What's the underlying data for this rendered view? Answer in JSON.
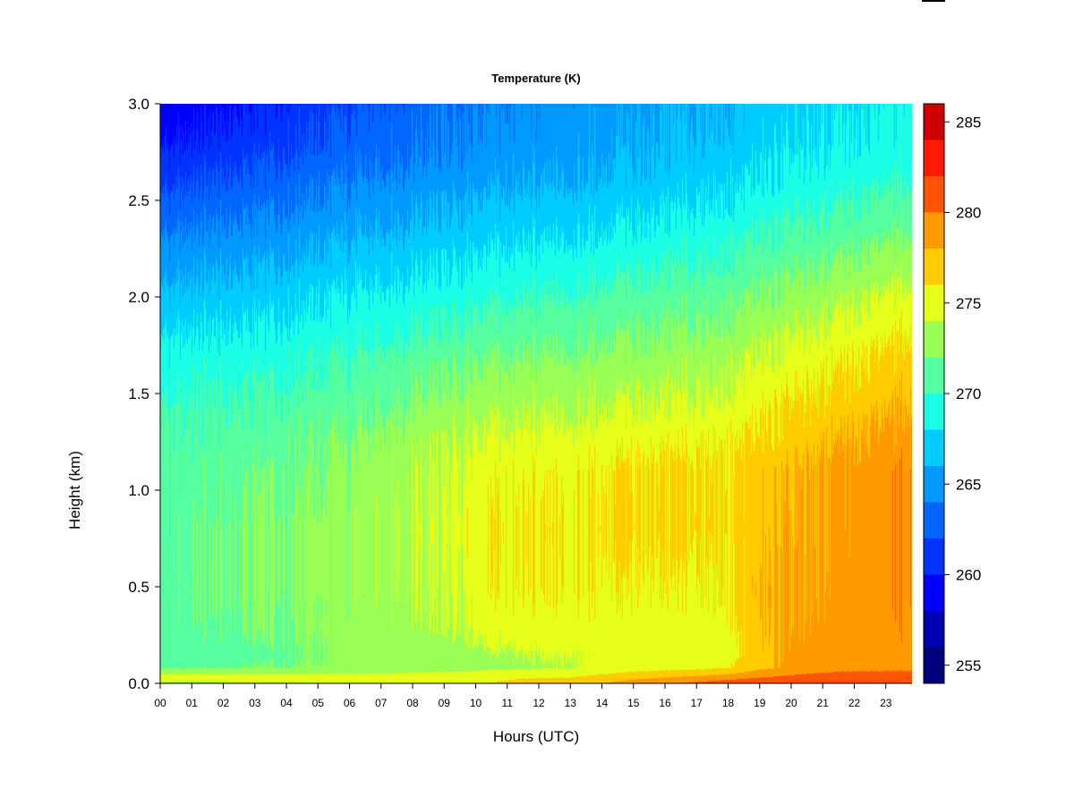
{
  "chart_data": {
    "type": "heatmap",
    "title": "Temperature (K)",
    "xlabel": "Hours (UTC)",
    "ylabel": "Height (km)",
    "x_ticks": [
      "00",
      "01",
      "02",
      "03",
      "04",
      "05",
      "06",
      "07",
      "08",
      "09",
      "10",
      "11",
      "12",
      "13",
      "14",
      "15",
      "16",
      "17",
      "18",
      "19",
      "20",
      "21",
      "22",
      "23"
    ],
    "xlim": [
      0,
      23.83
    ],
    "y_ticks": [
      "0.0",
      "0.5",
      "1.0",
      "1.5",
      "2.0",
      "2.5",
      "3.0"
    ],
    "ylim": [
      0,
      3.0
    ],
    "colorbar": {
      "ticks": [
        "255",
        "260",
        "265",
        "270",
        "275",
        "280",
        "285"
      ],
      "range": [
        254,
        286
      ],
      "levels": [
        254,
        256,
        258,
        260,
        262,
        264,
        266,
        268,
        270,
        272,
        274,
        276,
        278,
        280,
        282,
        284,
        286
      ],
      "colors": [
        "#00007f",
        "#0000b3",
        "#0000ff",
        "#0033ff",
        "#0066ff",
        "#0099ff",
        "#00ccff",
        "#1affe6",
        "#55ff9f",
        "#99ff55",
        "#e6ff1a",
        "#ffcc00",
        "#ff9900",
        "#ff5500",
        "#ff1a00",
        "#cc0000",
        "#7f0000"
      ]
    },
    "profile_heights_km": [
      0.0,
      0.03,
      0.08,
      0.15,
      0.3,
      0.5,
      0.8,
      1.1,
      1.4,
      1.7,
      2.0,
      2.3,
      2.6,
      2.8,
      3.0
    ],
    "profile_hours": [
      0,
      3,
      6,
      9,
      10.5,
      13,
      15,
      17,
      18,
      19,
      20,
      21,
      22,
      23,
      23.83
    ],
    "temperature_K": [
      [
        273.5,
        275.0,
        271.8,
        271.0,
        271.2,
        271.2,
        271.0,
        270.6,
        270.2,
        268.8,
        266.5,
        264.2,
        261.5,
        259.8,
        258.5
      ],
      [
        273.8,
        275.0,
        272.0,
        271.6,
        271.8,
        272.0,
        272.0,
        271.5,
        270.5,
        269.0,
        267.0,
        264.8,
        262.5,
        261.0,
        260.0
      ],
      [
        274.0,
        275.2,
        272.2,
        272.4,
        272.8,
        273.0,
        273.0,
        272.6,
        271.5,
        270.0,
        268.2,
        266.0,
        264.0,
        262.8,
        261.8
      ],
      [
        275.0,
        275.5,
        272.8,
        273.2,
        273.8,
        274.2,
        274.5,
        274.2,
        273.0,
        271.2,
        269.0,
        267.0,
        265.0,
        264.0,
        263.5
      ],
      [
        276.0,
        275.8,
        273.5,
        273.8,
        274.8,
        275.5,
        275.8,
        275.2,
        273.6,
        271.8,
        269.6,
        267.5,
        265.5,
        264.6,
        264.0
      ],
      [
        277.0,
        276.0,
        274.0,
        274.2,
        275.2,
        275.8,
        276.0,
        275.5,
        274.0,
        272.2,
        270.2,
        268.0,
        266.0,
        265.2,
        264.8
      ],
      [
        279.0,
        277.5,
        275.0,
        274.5,
        275.0,
        275.6,
        276.5,
        276.2,
        274.4,
        272.6,
        270.8,
        268.6,
        266.6,
        265.8,
        265.4
      ],
      [
        280.5,
        278.5,
        275.5,
        274.5,
        274.8,
        275.5,
        276.5,
        276.4,
        274.6,
        273.0,
        271.2,
        269.2,
        267.2,
        266.4,
        266.0
      ],
      [
        281.5,
        279.0,
        276.0,
        275.0,
        275.5,
        276.0,
        276.6,
        276.5,
        275.0,
        273.4,
        271.6,
        269.6,
        267.6,
        266.8,
        266.4
      ],
      [
        282.0,
        280.0,
        277.5,
        277.5,
        277.5,
        277.5,
        277.2,
        277.0,
        275.5,
        274.0,
        272.0,
        270.0,
        268.0,
        267.2,
        266.8
      ],
      [
        282.0,
        280.5,
        278.5,
        278.2,
        278.0,
        278.0,
        277.8,
        277.6,
        276.2,
        274.6,
        272.6,
        270.5,
        268.5,
        267.6,
        267.2
      ],
      [
        282.0,
        281.0,
        279.0,
        279.0,
        278.8,
        278.6,
        278.5,
        278.4,
        276.8,
        275.2,
        273.2,
        271.0,
        269.0,
        268.0,
        267.6
      ],
      [
        282.0,
        281.0,
        279.5,
        279.2,
        279.2,
        279.2,
        279.0,
        279.0,
        277.4,
        275.8,
        273.8,
        271.5,
        269.4,
        268.4,
        268.0
      ],
      [
        282.0,
        281.0,
        279.5,
        279.4,
        279.4,
        279.5,
        279.4,
        279.4,
        278.0,
        276.4,
        274.4,
        272.0,
        269.8,
        268.8,
        268.4
      ],
      [
        282.0,
        281.0,
        279.6,
        279.5,
        279.5,
        279.6,
        279.6,
        279.6,
        278.2,
        276.6,
        274.6,
        272.2,
        270.0,
        269.0,
        268.6
      ]
    ]
  }
}
